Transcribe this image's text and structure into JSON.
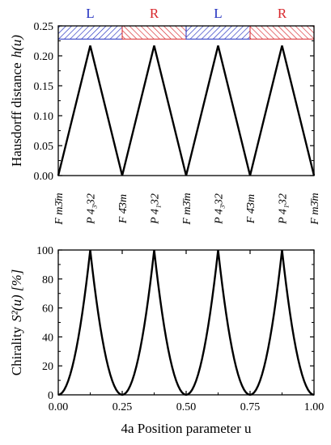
{
  "chart_data": [
    {
      "type": "line",
      "ylabel": "Hausdorff distance",
      "ylabel_symbol": "h(u)",
      "xlim": [
        0,
        1
      ],
      "ylim": [
        0,
        0.25
      ],
      "y_ticks": [
        "0.00",
        "0.05",
        "0.10",
        "0.15",
        "0.20",
        "0.25"
      ],
      "grid": false,
      "series": [
        {
          "x": [
            0,
            0.125,
            0.25,
            0.375,
            0.5,
            0.625,
            0.75,
            0.875,
            1.0
          ],
          "y": [
            0,
            0.217,
            0,
            0.217,
            0,
            0.217,
            0,
            0.217,
            0
          ]
        }
      ],
      "handedness_bands": [
        {
          "label": "L",
          "from": 0.0,
          "to": 0.25,
          "color": "#1f2dbf"
        },
        {
          "label": "R",
          "from": 0.25,
          "to": 0.5,
          "color": "#d8262b"
        },
        {
          "label": "L",
          "from": 0.5,
          "to": 0.75,
          "color": "#1f2dbf"
        },
        {
          "label": "R",
          "from": 0.75,
          "to": 1.0,
          "color": "#d8262b"
        }
      ],
      "space_groups": [
        {
          "x": 0.0,
          "label": "F m3̄m"
        },
        {
          "x": 0.125,
          "label": "P 4₃32"
        },
        {
          "x": 0.25,
          "label": "F 4̄3m"
        },
        {
          "x": 0.375,
          "label": "P 4₁32"
        },
        {
          "x": 0.5,
          "label": "F m3̄m"
        },
        {
          "x": 0.625,
          "label": "P 4₃32"
        },
        {
          "x": 0.75,
          "label": "F 4̄3m"
        },
        {
          "x": 0.875,
          "label": "P 4₁32"
        },
        {
          "x": 1.0,
          "label": "F m3̄m"
        }
      ]
    },
    {
      "type": "line",
      "ylabel": "Chirality",
      "ylabel_symbol": "S²(u) [%]",
      "xlabel": "4a Position parameter u",
      "xlim": [
        0,
        1
      ],
      "ylim": [
        0,
        100
      ],
      "x_ticks": [
        "0.00",
        "0.25",
        "0.50",
        "0.75",
        "1.00"
      ],
      "y_ticks": [
        "0",
        "20",
        "40",
        "60",
        "80",
        "100"
      ],
      "grid": false,
      "series": [
        {
          "x": [
            0,
            0.0625,
            0.125,
            0.1875,
            0.25,
            0.3125,
            0.375,
            0.4375,
            0.5,
            0.5625,
            0.625,
            0.6875,
            0.75,
            0.8125,
            0.875,
            0.9375,
            1.0
          ],
          "y": [
            0,
            25,
            100,
            25,
            0,
            25,
            100,
            25,
            0,
            25,
            100,
            25,
            0,
            25,
            100,
            25,
            0
          ]
        }
      ]
    }
  ]
}
